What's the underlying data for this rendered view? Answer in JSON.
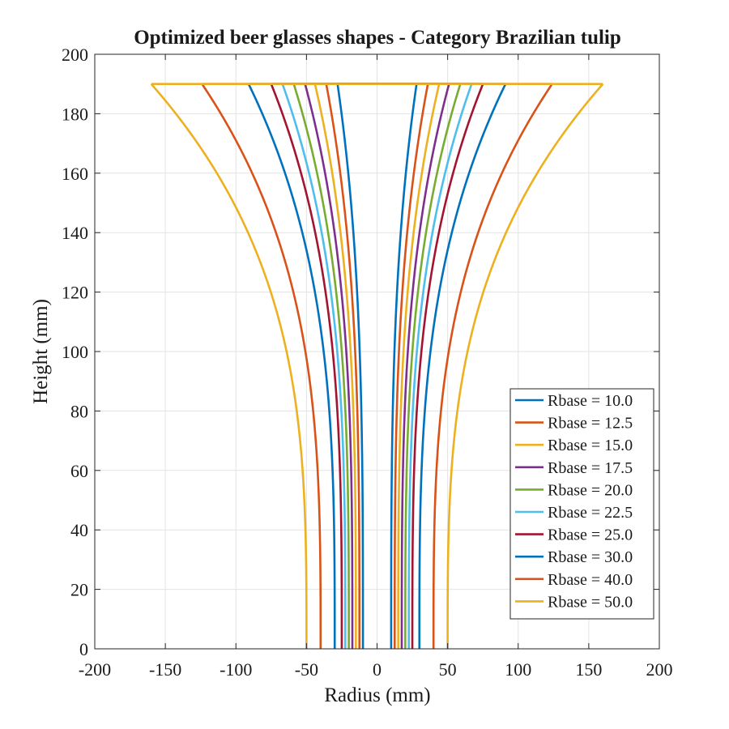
{
  "chart_data": {
    "type": "line",
    "title": "Optimized beer glasses shapes - Category Brazilian tulip",
    "xlabel": "Radius (mm)",
    "ylabel": "Height (mm)",
    "xlim": [
      -200,
      200
    ],
    "ylim": [
      0,
      200
    ],
    "xticks": [
      -200,
      -150,
      -100,
      -50,
      0,
      50,
      100,
      150,
      200
    ],
    "yticks": [
      0,
      20,
      40,
      60,
      80,
      100,
      120,
      140,
      160,
      180,
      200
    ],
    "xtick_labels": [
      "-200",
      "-150",
      "-100",
      "-50",
      "0",
      "50",
      "100",
      "150",
      "200"
    ],
    "ytick_labels": [
      "0",
      "20",
      "40",
      "60",
      "80",
      "100",
      "120",
      "140",
      "160",
      "180",
      "200"
    ],
    "grid": true,
    "legend_position": "bottom-right",
    "rim_height": 190,
    "series": [
      {
        "name": "Rbase = 10.0",
        "color": "#0072BD",
        "r_base": 10.0,
        "r_top": 28
      },
      {
        "name": "Rbase = 12.5",
        "color": "#D95319",
        "r_base": 12.5,
        "r_top": 36
      },
      {
        "name": "Rbase = 15.0",
        "color": "#EDB120",
        "r_base": 15.0,
        "r_top": 44
      },
      {
        "name": "Rbase = 17.5",
        "color": "#7E2F8E",
        "r_base": 17.5,
        "r_top": 51
      },
      {
        "name": "Rbase = 20.0",
        "color": "#77AC30",
        "r_base": 20.0,
        "r_top": 59
      },
      {
        "name": "Rbase = 22.5",
        "color": "#4DBEEE",
        "r_base": 22.5,
        "r_top": 67
      },
      {
        "name": "Rbase = 25.0",
        "color": "#A2142F",
        "r_base": 25.0,
        "r_top": 75
      },
      {
        "name": "Rbase = 30.0",
        "color": "#0072BD",
        "r_base": 30.0,
        "r_top": 91
      },
      {
        "name": "Rbase = 40.0",
        "color": "#D95319",
        "r_base": 40.0,
        "r_top": 124
      },
      {
        "name": "Rbase = 50.0",
        "color": "#EDB120",
        "r_base": 50.0,
        "r_top": 160
      }
    ]
  }
}
